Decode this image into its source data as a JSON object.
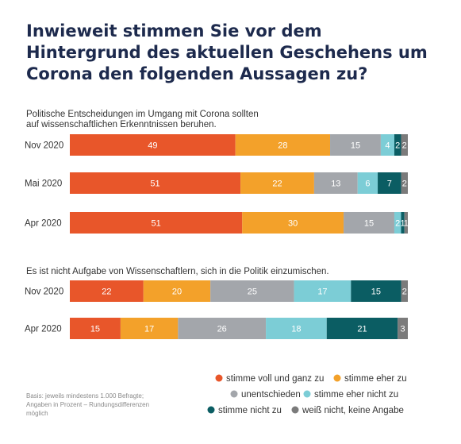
{
  "title": "Inwieweit stimmen Sie vor dem Hintergrund des aktuellen Geschehens um Corona den folgenden Aussagen zu?",
  "note": [
    "Basis: jeweils mindestens 1.000 Befragte;",
    "Angaben in Prozent – Rundungsdifferenzen",
    "möglich"
  ],
  "chart_data": [
    {
      "type": "bar",
      "orientation": "horizontal",
      "stacked": true,
      "question_lines": [
        "Politische Entscheidungen im Umgang mit Corona sollten",
        "auf wissenschaftlichen Erkenntnissen beruhen."
      ],
      "categories": [
        "Nov 2020",
        "Mai 2020",
        "Apr 2020"
      ],
      "series": [
        {
          "name": "stimme voll und ganz zu",
          "values": [
            49,
            51,
            51
          ]
        },
        {
          "name": "stimme eher zu",
          "values": [
            28,
            22,
            30
          ]
        },
        {
          "name": "unentschieden",
          "values": [
            15,
            13,
            15
          ]
        },
        {
          "name": "stimme eher nicht zu",
          "values": [
            4,
            6,
            2
          ]
        },
        {
          "name": "stimme nicht zu",
          "values": [
            2,
            7,
            1
          ]
        },
        {
          "name": "weiß nicht, keine Angabe",
          "values": [
            2,
            2,
            1
          ]
        }
      ]
    },
    {
      "type": "bar",
      "orientation": "horizontal",
      "stacked": true,
      "question_lines": [
        "Es ist nicht Aufgabe von Wissenschaftlern, sich in die Politik einzumischen."
      ],
      "categories": [
        "Nov 2020",
        "Apr 2020"
      ],
      "series": [
        {
          "name": "stimme voll und ganz zu",
          "values": [
            22,
            15
          ]
        },
        {
          "name": "stimme eher zu",
          "values": [
            20,
            17
          ]
        },
        {
          "name": "unentschieden",
          "values": [
            25,
            26
          ]
        },
        {
          "name": "stimme eher nicht zu",
          "values": [
            17,
            18
          ]
        },
        {
          "name": "stimme nicht zu",
          "values": [
            15,
            21
          ]
        },
        {
          "name": "weiß nicht, keine Angabe",
          "values": [
            2,
            3
          ]
        }
      ]
    }
  ],
  "legend": [
    {
      "label": "stimme voll und ganz zu",
      "color": "#e8562a"
    },
    {
      "label": "stimme eher zu",
      "color": "#f3a12a"
    },
    {
      "label": "unentschieden",
      "color": "#a3a6ab"
    },
    {
      "label": "stimme eher nicht zu",
      "color": "#7ccdd6"
    },
    {
      "label": "stimme nicht zu",
      "color": "#0b5d63"
    },
    {
      "label": "weiß nicht, keine Angabe",
      "color": "#7b7b7b"
    }
  ]
}
